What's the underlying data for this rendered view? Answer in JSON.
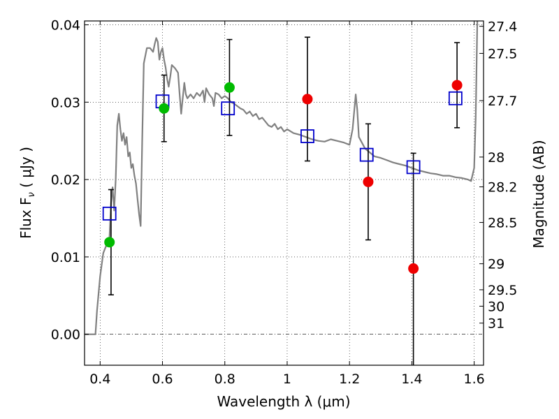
{
  "chart_data": {
    "type": "scatter",
    "xlabel": "Wavelength  λ (μm)",
    "ylabel": "Flux  F",
    "ylabel_sub": "ν",
    "ylabel_unit": "  ( μJy )",
    "y2label": "Magnitude (AB)",
    "xlim": [
      0.35,
      1.63
    ],
    "ylim": [
      -0.004,
      0.0405
    ],
    "grid": true,
    "x_ticks": [
      {
        "value": 0.4,
        "label": "0.4"
      },
      {
        "value": 0.6,
        "label": "0.6"
      },
      {
        "value": 0.8,
        "label": "0.8"
      },
      {
        "value": 1.0,
        "label": "1"
      },
      {
        "value": 1.2,
        "label": "1.2"
      },
      {
        "value": 1.4,
        "label": "1.4"
      },
      {
        "value": 1.6,
        "label": "1.6"
      }
    ],
    "y_ticks": [
      {
        "value": 0.0,
        "label": "0.00"
      },
      {
        "value": 0.01,
        "label": "0.01"
      },
      {
        "value": 0.02,
        "label": "0.02"
      },
      {
        "value": 0.03,
        "label": "0.03"
      },
      {
        "value": 0.04,
        "label": "0.04"
      }
    ],
    "mag_ticks": [
      {
        "value": 27.4,
        "label": "27.4"
      },
      {
        "value": 27.5,
        "label": "27.5"
      },
      {
        "value": 27.7,
        "label": "27.7"
      },
      {
        "value": 28.0,
        "label": "28"
      },
      {
        "value": 28.2,
        "label": "28.2"
      },
      {
        "value": 28.5,
        "label": "28.5"
      },
      {
        "value": 29.0,
        "label": "29"
      },
      {
        "value": 29.5,
        "label": "29.5"
      },
      {
        "value": 30.0,
        "label": "30"
      },
      {
        "value": 31.0,
        "label": "31"
      }
    ],
    "series": [
      {
        "kind": "line",
        "color": "#808080",
        "points": [
          [
            0.35,
            0.0
          ],
          [
            0.385,
            0.0
          ],
          [
            0.39,
            0.003
          ],
          [
            0.4,
            0.0075
          ],
          [
            0.41,
            0.0105
          ],
          [
            0.42,
            0.0115
          ],
          [
            0.43,
            0.0125
          ],
          [
            0.435,
            0.017
          ],
          [
            0.44,
            0.019
          ],
          [
            0.445,
            0.016
          ],
          [
            0.45,
            0.02
          ],
          [
            0.455,
            0.027
          ],
          [
            0.46,
            0.0285
          ],
          [
            0.465,
            0.0265
          ],
          [
            0.47,
            0.025
          ],
          [
            0.475,
            0.026
          ],
          [
            0.48,
            0.0245
          ],
          [
            0.485,
            0.0255
          ],
          [
            0.49,
            0.023
          ],
          [
            0.495,
            0.0235
          ],
          [
            0.5,
            0.0215
          ],
          [
            0.505,
            0.022
          ],
          [
            0.51,
            0.0205
          ],
          [
            0.515,
            0.0195
          ],
          [
            0.52,
            0.0175
          ],
          [
            0.525,
            0.0155
          ],
          [
            0.53,
            0.014
          ],
          [
            0.535,
            0.025
          ],
          [
            0.54,
            0.035
          ],
          [
            0.55,
            0.037
          ],
          [
            0.56,
            0.037
          ],
          [
            0.57,
            0.0365
          ],
          [
            0.575,
            0.0375
          ],
          [
            0.58,
            0.0383
          ],
          [
            0.585,
            0.0378
          ],
          [
            0.59,
            0.0355
          ],
          [
            0.595,
            0.0365
          ],
          [
            0.6,
            0.037
          ],
          [
            0.605,
            0.0355
          ],
          [
            0.61,
            0.0345
          ],
          [
            0.615,
            0.033
          ],
          [
            0.62,
            0.032
          ],
          [
            0.625,
            0.0333
          ],
          [
            0.63,
            0.0348
          ],
          [
            0.64,
            0.0344
          ],
          [
            0.65,
            0.0338
          ],
          [
            0.655,
            0.031
          ],
          [
            0.66,
            0.0285
          ],
          [
            0.665,
            0.0305
          ],
          [
            0.67,
            0.0325
          ],
          [
            0.675,
            0.031
          ],
          [
            0.68,
            0.0305
          ],
          [
            0.69,
            0.031
          ],
          [
            0.7,
            0.0305
          ],
          [
            0.71,
            0.0312
          ],
          [
            0.72,
            0.0308
          ],
          [
            0.73,
            0.0315
          ],
          [
            0.735,
            0.03
          ],
          [
            0.74,
            0.0318
          ],
          [
            0.75,
            0.031
          ],
          [
            0.76,
            0.0305
          ],
          [
            0.765,
            0.0295
          ],
          [
            0.77,
            0.0312
          ],
          [
            0.78,
            0.031
          ],
          [
            0.79,
            0.0305
          ],
          [
            0.8,
            0.0308
          ],
          [
            0.81,
            0.0305
          ],
          [
            0.82,
            0.03
          ],
          [
            0.83,
            0.0298
          ],
          [
            0.84,
            0.0295
          ],
          [
            0.85,
            0.0292
          ],
          [
            0.86,
            0.029
          ],
          [
            0.87,
            0.0285
          ],
          [
            0.88,
            0.0288
          ],
          [
            0.89,
            0.0282
          ],
          [
            0.9,
            0.0285
          ],
          [
            0.91,
            0.0278
          ],
          [
            0.92,
            0.028
          ],
          [
            0.93,
            0.0275
          ],
          [
            0.94,
            0.027
          ],
          [
            0.95,
            0.0268
          ],
          [
            0.96,
            0.0272
          ],
          [
            0.97,
            0.0265
          ],
          [
            0.98,
            0.0268
          ],
          [
            0.99,
            0.0262
          ],
          [
            1.0,
            0.0265
          ],
          [
            1.02,
            0.026
          ],
          [
            1.04,
            0.0258
          ],
          [
            1.06,
            0.0255
          ],
          [
            1.08,
            0.0252
          ],
          [
            1.1,
            0.025
          ],
          [
            1.12,
            0.0249
          ],
          [
            1.14,
            0.0252
          ],
          [
            1.16,
            0.025
          ],
          [
            1.18,
            0.0248
          ],
          [
            1.2,
            0.0245
          ],
          [
            1.21,
            0.0265
          ],
          [
            1.22,
            0.031
          ],
          [
            1.225,
            0.029
          ],
          [
            1.23,
            0.0255
          ],
          [
            1.25,
            0.024
          ],
          [
            1.28,
            0.023
          ],
          [
            1.3,
            0.0228
          ],
          [
            1.32,
            0.0225
          ],
          [
            1.34,
            0.0222
          ],
          [
            1.36,
            0.022
          ],
          [
            1.38,
            0.0218
          ],
          [
            1.4,
            0.0215
          ],
          [
            1.42,
            0.0212
          ],
          [
            1.44,
            0.021
          ],
          [
            1.46,
            0.0208
          ],
          [
            1.48,
            0.0207
          ],
          [
            1.5,
            0.0205
          ],
          [
            1.52,
            0.0205
          ],
          [
            1.54,
            0.0203
          ],
          [
            1.56,
            0.0202
          ],
          [
            1.58,
            0.02
          ],
          [
            1.59,
            0.0198
          ],
          [
            1.6,
            0.0215
          ],
          [
            1.605,
            0.028
          ],
          [
            1.61,
            0.041
          ]
        ]
      },
      {
        "kind": "model-squares",
        "color": "#0000cc",
        "points": [
          [
            0.43,
            0.0156
          ],
          [
            0.6,
            0.0301
          ],
          [
            0.81,
            0.0292
          ],
          [
            1.065,
            0.0256
          ],
          [
            1.255,
            0.0232
          ],
          [
            1.405,
            0.0216
          ],
          [
            1.54,
            0.0305
          ]
        ]
      },
      {
        "kind": "observed",
        "color": "#00bb00",
        "points": [
          [
            0.43,
            0.0119
          ],
          [
            0.605,
            0.0292
          ],
          [
            0.815,
            0.0319
          ]
        ]
      },
      {
        "kind": "observed",
        "color": "#ee0000",
        "points": [
          [
            1.065,
            0.0304
          ],
          [
            1.26,
            0.0197
          ],
          [
            1.405,
            0.0085
          ],
          [
            1.545,
            0.0322
          ]
        ]
      },
      {
        "kind": "error-bars",
        "color": "#000000",
        "bars": [
          {
            "x": 0.435,
            "y": 0.0119,
            "low": 0.0051,
            "high": 0.0187
          },
          {
            "x": 0.605,
            "y": 0.0292,
            "low": 0.0249,
            "high": 0.0335
          },
          {
            "x": 0.815,
            "y": 0.0319,
            "low": 0.0257,
            "high": 0.0381
          },
          {
            "x": 1.065,
            "y": 0.0304,
            "low": 0.0224,
            "high": 0.0384
          },
          {
            "x": 1.26,
            "y": 0.0197,
            "low": 0.0122,
            "high": 0.0272
          },
          {
            "x": 1.405,
            "y": 0.0085,
            "low": -0.004,
            "high": 0.0234
          },
          {
            "x": 1.545,
            "y": 0.0322,
            "low": 0.0267,
            "high": 0.0377
          }
        ]
      }
    ]
  }
}
